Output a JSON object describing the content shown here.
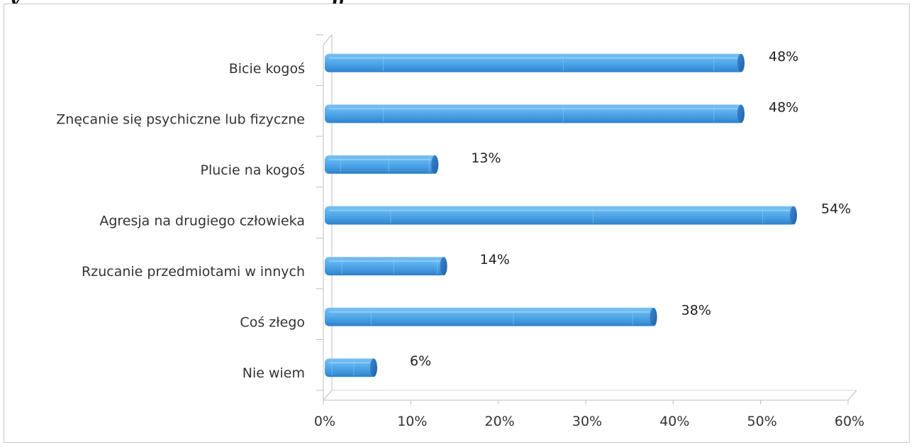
{
  "page": {
    "title_fragment_left": "y",
    "title_fragment_right": "p"
  },
  "chart_data": {
    "type": "bar",
    "orientation": "horizontal",
    "style": "3d-cylinder",
    "categories": [
      "Bicie kogoś",
      "Znęcanie się psychiczne lub fizyczne",
      "Plucie na kogoś",
      "Agresja na drugiego człowieka",
      "Rzucanie przedmiotami w innych",
      "Coś złego",
      "Nie wiem"
    ],
    "values": [
      48,
      48,
      13,
      54,
      14,
      38,
      6
    ],
    "data_labels": [
      "48%",
      "48%",
      "13%",
      "54%",
      "14%",
      "38%",
      "6%"
    ],
    "xlim": [
      0,
      60
    ],
    "x_ticks": [
      0,
      10,
      20,
      30,
      40,
      50,
      60
    ],
    "x_tick_labels": [
      "0%",
      "10%",
      "20%",
      "30%",
      "40%",
      "50%",
      "60%"
    ],
    "title": "",
    "xlabel": "",
    "ylabel": "",
    "legend": "none",
    "grid": false,
    "bar_color": "#4aa3e6",
    "bar_color_dark": "#2a78c4",
    "bar_color_light": "#8ccaf5"
  }
}
